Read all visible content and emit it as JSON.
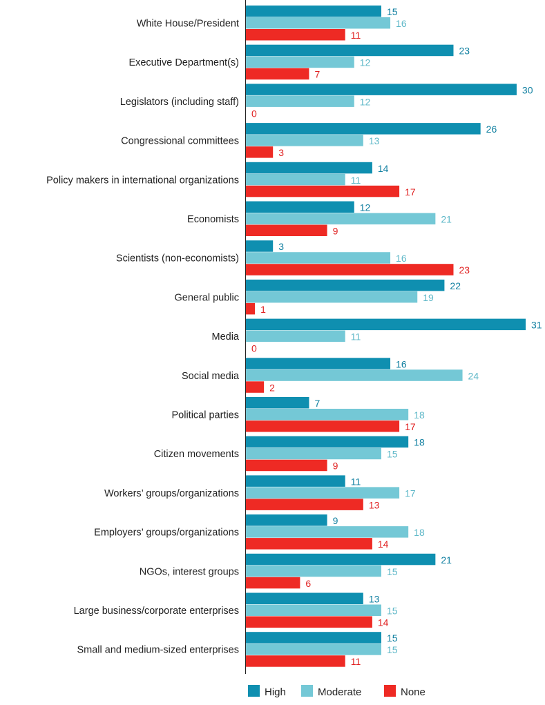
{
  "chart_data": {
    "type": "bar",
    "orientation": "horizontal",
    "categories": [
      "White House/President",
      "Executive Department(s)",
      "Legislators (including staff)",
      "Congressional committees",
      "Policy makers in international organizations",
      "Economists",
      "Scientists (non-economists)",
      "General public",
      "Media",
      "Social media",
      "Political parties",
      "Citizen movements",
      "Workers’ groups/organizations",
      "Employers’ groups/organizations",
      "NGOs, interest groups",
      "Large business/corporate enterprises",
      "Small and medium-sized enterprises"
    ],
    "series": [
      {
        "name": "High",
        "color": "#0f8fb0",
        "label_color": "#0f7fa0",
        "values": [
          15,
          23,
          30,
          26,
          14,
          12,
          3,
          22,
          31,
          16,
          7,
          18,
          11,
          9,
          21,
          13,
          15
        ]
      },
      {
        "name": "Moderate",
        "color": "#74c8d6",
        "label_color": "#5fb8c8",
        "values": [
          16,
          12,
          12,
          13,
          11,
          21,
          16,
          19,
          11,
          24,
          18,
          15,
          17,
          18,
          15,
          15,
          15
        ]
      },
      {
        "name": "None",
        "color": "#ee2a24",
        "label_color": "#e02020",
        "values": [
          11,
          7,
          0,
          3,
          17,
          9,
          23,
          1,
          0,
          2,
          17,
          9,
          13,
          14,
          6,
          14,
          11
        ]
      }
    ],
    "xlim": [
      0,
      31
    ],
    "grid": false,
    "legend_position": "bottom"
  }
}
